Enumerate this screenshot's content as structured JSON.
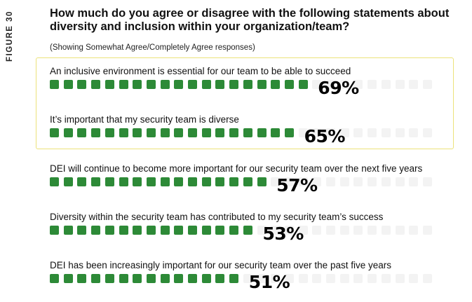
{
  "figure_label": "FIGURE 30",
  "chart_data": {
    "type": "bar",
    "title": "How much do you agree or disagree with the following statements about diversity and inclusion within your organization/team?",
    "subtitle": "(Showing Somewhat Agree/Completely Agree responses)",
    "unit": "%",
    "categories": [
      "An inclusive environment is essential for our team to be able to succeed",
      "It’s important that my security team is diverse",
      "DEI will continue to become more important for our security team over the next five years",
      "Diversity within the security team has contributed to my security team’s success",
      "DEI has been increasingly important for our security team over the past five years"
    ],
    "values": [
      69,
      65,
      57,
      53,
      51
    ],
    "value_labels": [
      "69%",
      "65%",
      "57%",
      "53%",
      "51%"
    ],
    "highlighted": [
      0,
      1
    ],
    "colors": {
      "filled": "#2d8a37",
      "empty": "#f3f3f3",
      "highlight_border": "#ece27a"
    }
  }
}
